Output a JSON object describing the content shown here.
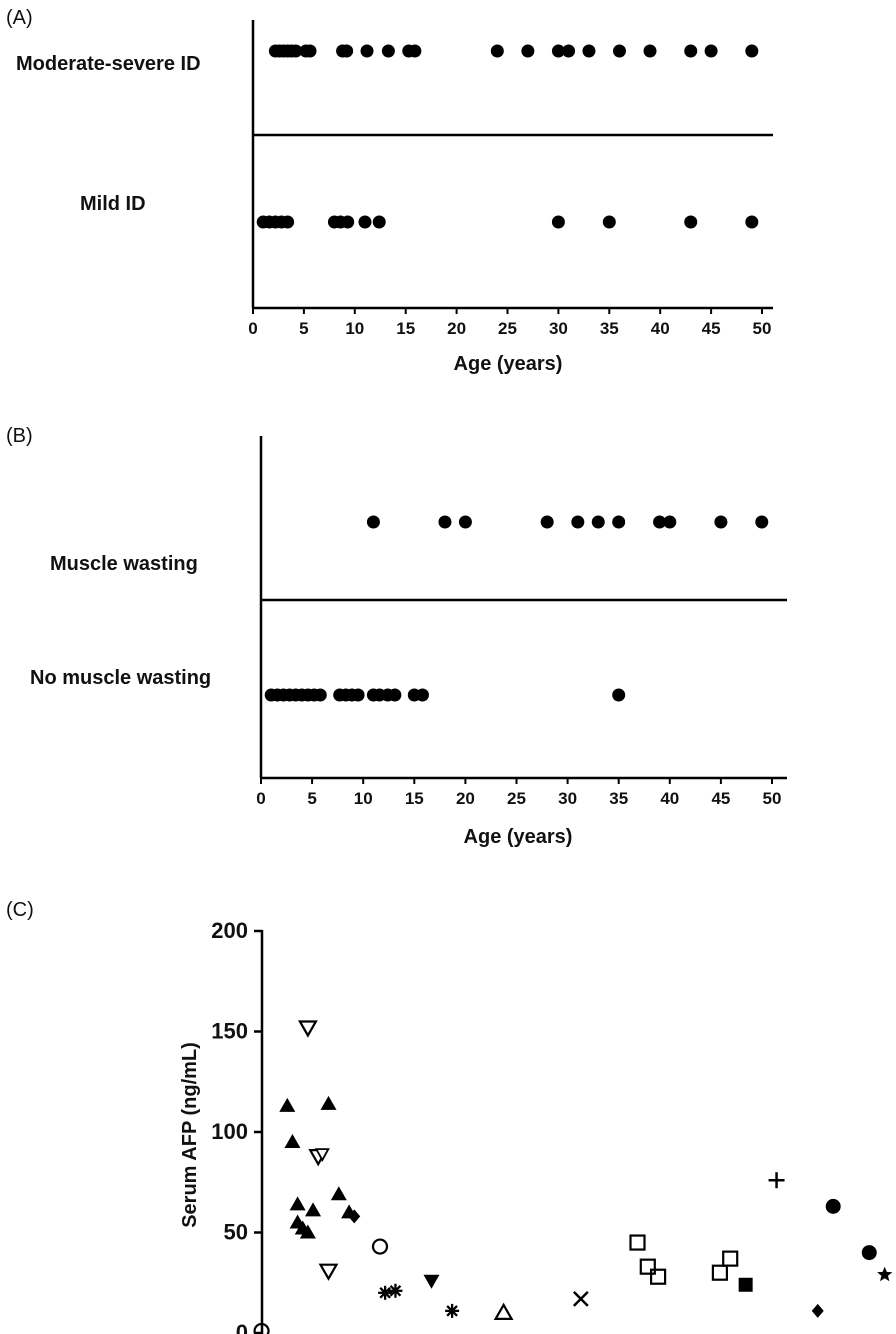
{
  "chart_data": [
    {
      "panel": "(A)",
      "type": "scatter",
      "xlabel": "Age (years)",
      "xlim": [
        0,
        50
      ],
      "xticks": [
        0,
        5,
        10,
        15,
        20,
        25,
        30,
        35,
        40,
        45,
        50
      ],
      "categories": [
        "Moderate-severe ID",
        "Mild ID"
      ],
      "series": [
        {
          "category": "Moderate-severe ID",
          "x": [
            2.2,
            2.6,
            3.0,
            3.4,
            3.8,
            4.2,
            5.2,
            5.6,
            8.8,
            9.2,
            11.2,
            13.3,
            15.3,
            15.9,
            24,
            27,
            30,
            31,
            33,
            36,
            39,
            43,
            45,
            49
          ]
        },
        {
          "category": "Mild ID",
          "x": [
            1,
            1.6,
            2.2,
            2.8,
            3.4,
            8,
            8.6,
            9.3,
            11,
            12.4,
            30,
            35,
            43,
            49
          ]
        }
      ]
    },
    {
      "panel": "(B)",
      "type": "scatter",
      "xlabel": "Age (years)",
      "xlim": [
        0,
        50
      ],
      "xticks": [
        0,
        5,
        10,
        15,
        20,
        25,
        30,
        35,
        40,
        45,
        50
      ],
      "categories": [
        "Muscle wasting",
        "No muscle wasting"
      ],
      "series": [
        {
          "category": "Muscle wasting",
          "x": [
            11,
            18,
            20,
            28,
            31,
            33,
            35,
            39,
            40,
            45,
            49
          ]
        },
        {
          "category": "No muscle wasting",
          "x": [
            1,
            1.6,
            2.2,
            2.8,
            3.4,
            4,
            4.6,
            5.2,
            5.8,
            7.7,
            8.3,
            8.9,
            9.5,
            11,
            11.6,
            12.4,
            13.1,
            15,
            15.8,
            35
          ]
        }
      ]
    },
    {
      "panel": "(C)",
      "type": "scatter",
      "ylabel": "Serum AFP (ng/mL)",
      "ylim": [
        0,
        200
      ],
      "yticks": [
        0,
        50,
        100,
        150,
        200
      ],
      "series": [
        {
          "marker": "filled-triangle",
          "points": [
            [
              1.0,
              113
            ],
            [
              1.5,
              95
            ],
            [
              2.0,
              64
            ],
            [
              2.0,
              55
            ],
            [
              2.5,
              52
            ],
            [
              3.0,
              50
            ],
            [
              3.5,
              61
            ],
            [
              5.0,
              114
            ],
            [
              6.0,
              69
            ],
            [
              7.0,
              60
            ]
          ]
        },
        {
          "marker": "open-triangle-down",
          "points": [
            [
              3.0,
              152
            ],
            [
              4.0,
              88
            ],
            [
              5.0,
              31
            ]
          ]
        },
        {
          "marker": "open-triangle-down-small",
          "points": [
            [
              4.4,
              89
            ]
          ]
        },
        {
          "marker": "filled-diamond",
          "points": [
            [
              7.5,
              58
            ],
            [
              52.5,
              11
            ]
          ]
        },
        {
          "marker": "open-circle",
          "points": [
            [
              10.0,
              43
            ]
          ]
        },
        {
          "marker": "asterisk",
          "points": [
            [
              10.5,
              20
            ],
            [
              11.5,
              21
            ],
            [
              17.0,
              11
            ]
          ]
        },
        {
          "marker": "filled-triangle-down",
          "points": [
            [
              15.0,
              26
            ]
          ]
        },
        {
          "marker": "open-triangle",
          "points": [
            [
              22.0,
              10
            ]
          ]
        },
        {
          "marker": "x-cross",
          "points": [
            [
              29.5,
              17
            ]
          ]
        },
        {
          "marker": "open-square",
          "points": [
            [
              35.0,
              45
            ],
            [
              36.0,
              33
            ],
            [
              37.0,
              28
            ],
            [
              43.0,
              30
            ],
            [
              44.0,
              37
            ]
          ]
        },
        {
          "marker": "filled-square",
          "points": [
            [
              45.5,
              24
            ]
          ]
        },
        {
          "marker": "plus",
          "points": [
            [
              48.5,
              76
            ]
          ]
        },
        {
          "marker": "filled-circle",
          "points": [
            [
              54.0,
              63
            ],
            [
              57.5,
              40
            ]
          ]
        },
        {
          "marker": "filled-star",
          "points": [
            [
              59.0,
              29
            ]
          ]
        },
        {
          "marker": "open-circle-partial",
          "points": [
            [
              -1.5,
              1
            ]
          ]
        }
      ]
    }
  ]
}
